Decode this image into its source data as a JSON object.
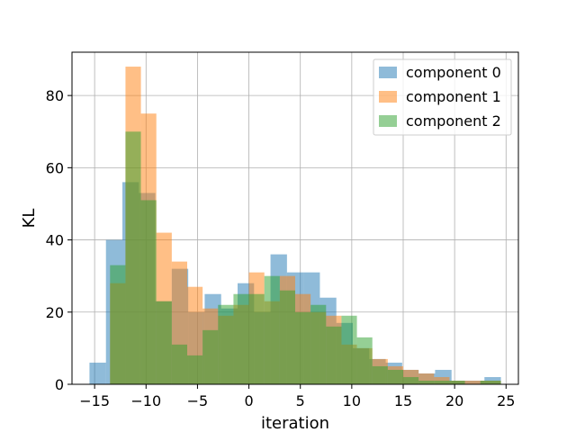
{
  "chart_data": {
    "type": "histogram",
    "xlabel": "iteration",
    "ylabel": "KL",
    "xlim": [
      -17.2,
      26.2
    ],
    "ylim": [
      0,
      92
    ],
    "xticks": [
      -15,
      -10,
      -5,
      0,
      5,
      10,
      15,
      20,
      25
    ],
    "xtick_labels": [
      "−15",
      "−10",
      "−5",
      "0",
      "5",
      "10",
      "15",
      "20",
      "25"
    ],
    "yticks": [
      0,
      20,
      40,
      60,
      80
    ],
    "ytick_labels": [
      "0",
      "20",
      "40",
      "60",
      "80"
    ],
    "grid": true,
    "legend_position": "top-right",
    "alpha": 0.5,
    "series": [
      {
        "name": "component 0",
        "color": "#1f77b4",
        "bins": [
          [
            -15.5,
            -13.9,
            6
          ],
          [
            -13.9,
            -12.3,
            40
          ],
          [
            -12.3,
            -10.7,
            56
          ],
          [
            -10.7,
            -9.1,
            53
          ],
          [
            -9.1,
            -7.5,
            23
          ],
          [
            -7.5,
            -5.9,
            32
          ],
          [
            -5.9,
            -4.3,
            20
          ],
          [
            -4.3,
            -2.7,
            25
          ],
          [
            -2.7,
            -1.1,
            21
          ],
          [
            -1.1,
            0.5,
            28
          ],
          [
            0.5,
            2.1,
            20
          ],
          [
            2.1,
            3.7,
            36
          ],
          [
            3.7,
            5.3,
            31
          ],
          [
            5.3,
            6.9,
            31
          ],
          [
            6.9,
            8.5,
            24
          ],
          [
            8.5,
            10.1,
            17
          ],
          [
            10.1,
            11.7,
            10
          ],
          [
            11.7,
            13.3,
            7
          ],
          [
            13.3,
            14.9,
            6
          ],
          [
            14.9,
            16.5,
            4
          ],
          [
            16.5,
            18.1,
            3
          ],
          [
            18.1,
            19.7,
            4
          ],
          [
            19.7,
            21.3,
            1
          ],
          [
            21.3,
            22.9,
            1
          ],
          [
            22.9,
            24.5,
            2
          ]
        ]
      },
      {
        "name": "component 1",
        "color": "#ff7f0e",
        "bins": [
          [
            -13.5,
            -12.0,
            28
          ],
          [
            -12.0,
            -10.5,
            88
          ],
          [
            -10.5,
            -9.0,
            75
          ],
          [
            -9.0,
            -7.5,
            42
          ],
          [
            -7.5,
            -6.0,
            34
          ],
          [
            -6.0,
            -4.5,
            27
          ],
          [
            -4.5,
            -3.0,
            21
          ],
          [
            -3.0,
            -1.5,
            19
          ],
          [
            -1.5,
            0.0,
            22
          ],
          [
            0.0,
            1.5,
            31
          ],
          [
            1.5,
            3.0,
            23
          ],
          [
            3.0,
            4.5,
            30
          ],
          [
            4.5,
            6.0,
            25
          ],
          [
            6.0,
            7.5,
            20
          ],
          [
            7.5,
            9.0,
            19
          ],
          [
            9.0,
            10.5,
            11
          ],
          [
            10.5,
            12.0,
            10
          ],
          [
            12.0,
            13.5,
            7
          ],
          [
            13.5,
            15.0,
            5
          ],
          [
            15.0,
            16.5,
            4
          ],
          [
            16.5,
            18.0,
            3
          ],
          [
            18.0,
            19.5,
            2
          ],
          [
            19.5,
            21.0,
            1
          ],
          [
            21.0,
            22.5,
            1
          ],
          [
            22.5,
            24.5,
            1
          ]
        ]
      },
      {
        "name": "component 2",
        "color": "#2ca02c",
        "bins": [
          [
            -13.5,
            -12.0,
            33
          ],
          [
            -12.0,
            -10.5,
            70
          ],
          [
            -10.5,
            -9.0,
            51
          ],
          [
            -9.0,
            -7.5,
            23
          ],
          [
            -7.5,
            -6.0,
            11
          ],
          [
            -6.0,
            -4.5,
            8
          ],
          [
            -4.5,
            -3.0,
            15
          ],
          [
            -3.0,
            -1.5,
            22
          ],
          [
            -1.5,
            0.0,
            25
          ],
          [
            0.0,
            1.5,
            25
          ],
          [
            1.5,
            3.0,
            30
          ],
          [
            3.0,
            4.5,
            26
          ],
          [
            4.5,
            6.0,
            20
          ],
          [
            6.0,
            7.5,
            22
          ],
          [
            7.5,
            9.0,
            16
          ],
          [
            9.0,
            10.5,
            19
          ],
          [
            10.5,
            12.0,
            13
          ],
          [
            12.0,
            13.5,
            5
          ],
          [
            13.5,
            15.0,
            4
          ],
          [
            15.0,
            16.5,
            2
          ],
          [
            16.5,
            18.0,
            1
          ],
          [
            18.0,
            19.5,
            1
          ],
          [
            19.5,
            21.0,
            1
          ],
          [
            21.0,
            22.5,
            0
          ],
          [
            22.5,
            24.5,
            1
          ]
        ]
      }
    ]
  }
}
